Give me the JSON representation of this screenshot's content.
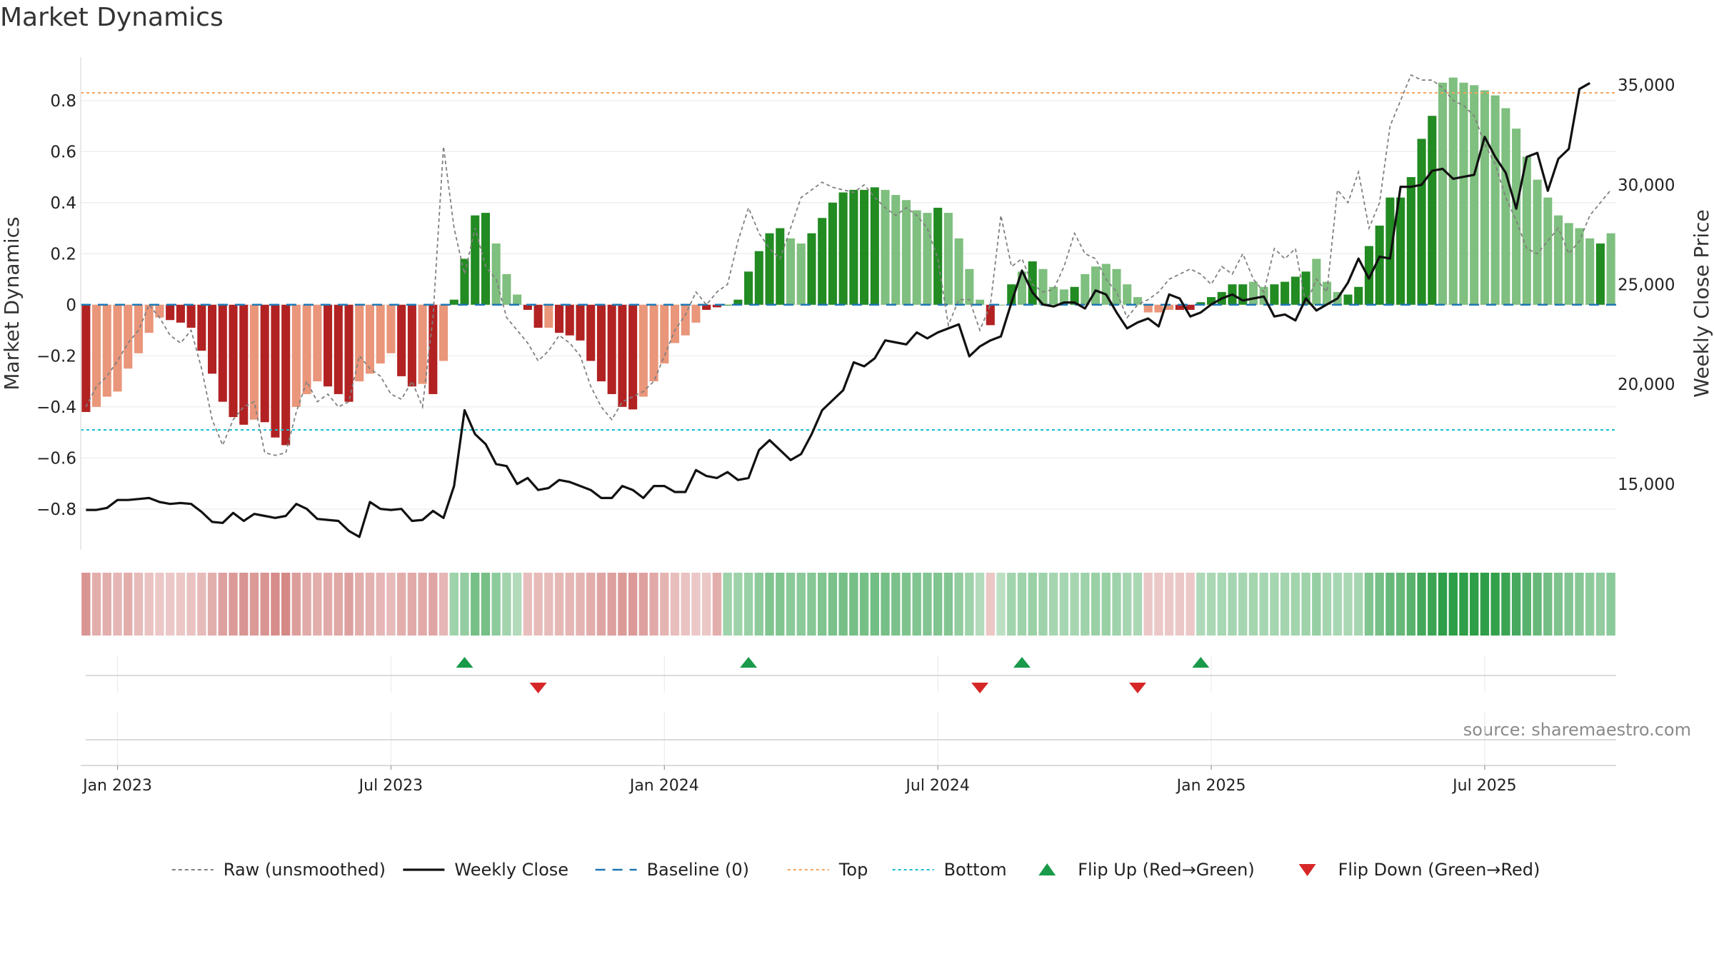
{
  "title": "Market Dynamics",
  "source": "source: sharemaestro.com",
  "colors": {
    "deep_red": "#b22222",
    "light_red": "#e9967a",
    "deep_green": "#228b22",
    "light_green": "#7fbf7f",
    "close_line": "#111111",
    "raw_line": "#808080",
    "baseline": "#1f77b4",
    "top_line": "#f4a460",
    "bottom_line": "#17becf",
    "flip_up": "#1a9a4a",
    "flip_down": "#d62728"
  },
  "legend": [
    {
      "key": "raw",
      "label": "Raw (unsmoothed)",
      "style": "dashed-gray-line"
    },
    {
      "key": "close",
      "label": "Weekly Close",
      "style": "solid-black-line"
    },
    {
      "key": "baseline",
      "label": "Baseline (0)",
      "style": "dashed-blue-line"
    },
    {
      "key": "top",
      "label": "Top",
      "style": "dotted-orange-line"
    },
    {
      "key": "bottom",
      "label": "Bottom",
      "style": "dotted-cyan-line"
    },
    {
      "key": "flip_up",
      "label": "Flip Up (Red→Green)",
      "style": "green-triangle-up"
    },
    {
      "key": "flip_down",
      "label": "Flip Down (Green→Red)",
      "style": "red-triangle-down"
    }
  ],
  "chart_data": {
    "type": "bar",
    "title": "Market Dynamics",
    "ylabel": "Market Dynamics",
    "y2label": "Weekly Close Price",
    "ylim": [
      -0.96,
      0.97
    ],
    "y2lim": [
      11700,
      36400
    ],
    "yticks": [
      "−0.8",
      "−0.6",
      "−0.4",
      "−0.2",
      "0",
      "0.2",
      "0.4",
      "0.6",
      "0.8"
    ],
    "yticks_values": [
      -0.8,
      -0.6,
      -0.4,
      -0.2,
      0,
      0.2,
      0.4,
      0.6,
      0.8
    ],
    "y2ticks": [
      "15,000",
      "20,000",
      "25,000",
      "30,000",
      "35,000"
    ],
    "y2ticks_values": [
      15000,
      20000,
      25000,
      30000,
      35000
    ],
    "xticks": [
      "Jan 2023",
      "Jul 2023",
      "Jan 2024",
      "Jul 2024",
      "Jan 2025",
      "Jul 2025"
    ],
    "xticks_week_index": [
      3,
      29,
      55,
      81,
      107,
      133
    ],
    "top": 0.83,
    "bottom": -0.49,
    "baseline": 0,
    "weeks": 146,
    "bars": [
      -0.42,
      -0.4,
      -0.36,
      -0.34,
      -0.25,
      -0.19,
      -0.11,
      -0.05,
      -0.06,
      -0.07,
      -0.09,
      -0.18,
      -0.27,
      -0.38,
      -0.44,
      -0.47,
      -0.45,
      -0.46,
      -0.52,
      -0.55,
      -0.4,
      -0.35,
      -0.3,
      -0.32,
      -0.35,
      -0.38,
      -0.3,
      -0.27,
      -0.23,
      -0.19,
      -0.28,
      -0.32,
      -0.31,
      -0.35,
      -0.22,
      0.02,
      0.18,
      0.35,
      0.36,
      0.24,
      0.12,
      0.04,
      -0.02,
      -0.09,
      -0.09,
      -0.11,
      -0.12,
      -0.14,
      -0.22,
      -0.3,
      -0.35,
      -0.4,
      -0.41,
      -0.36,
      -0.3,
      -0.23,
      -0.15,
      -0.12,
      -0.07,
      -0.02,
      -0.01,
      0.0,
      0.02,
      0.13,
      0.21,
      0.28,
      0.3,
      0.26,
      0.24,
      0.28,
      0.34,
      0.4,
      0.44,
      0.45,
      0.45,
      0.46,
      0.45,
      0.43,
      0.41,
      0.37,
      0.36,
      0.38,
      0.36,
      0.26,
      0.14,
      0.02,
      -0.08,
      0.0,
      0.08,
      0.13,
      0.17,
      0.14,
      0.07,
      0.06,
      0.07,
      0.12,
      0.15,
      0.16,
      0.14,
      0.08,
      0.03,
      -0.03,
      -0.03,
      -0.02,
      -0.02,
      -0.02,
      0.01,
      0.03,
      0.05,
      0.08,
      0.08,
      0.09,
      0.07,
      0.08,
      0.09,
      0.11,
      0.13,
      0.18,
      0.09,
      0.05,
      0.04,
      0.07,
      0.23,
      0.31,
      0.42,
      0.42,
      0.5,
      0.65,
      0.74,
      0.87,
      0.89,
      0.87,
      0.86,
      0.84,
      0.82,
      0.77,
      0.69,
      0.58,
      0.49,
      0.42,
      0.35,
      0.32,
      0.3,
      0.26,
      0.24,
      0.28
    ],
    "bar_shades": [
      "deep",
      "light",
      "light",
      "light",
      "light",
      "light",
      "light",
      "light",
      "deep",
      "deep",
      "deep",
      "deep",
      "deep",
      "deep",
      "deep",
      "deep",
      "light",
      "deep",
      "deep",
      "deep",
      "light",
      "light",
      "light",
      "deep",
      "deep",
      "deep",
      "light",
      "light",
      "light",
      "light",
      "deep",
      "deep",
      "light",
      "deep",
      "light",
      "deep",
      "deep",
      "deep",
      "deep",
      "light",
      "light",
      "light",
      "deep",
      "deep",
      "light",
      "deep",
      "deep",
      "deep",
      "deep",
      "deep",
      "deep",
      "deep",
      "deep",
      "light",
      "light",
      "light",
      "light",
      "light",
      "light",
      "deep",
      "deep",
      "deep",
      "deep",
      "deep",
      "deep",
      "deep",
      "deep",
      "light",
      "light",
      "deep",
      "deep",
      "deep",
      "deep",
      "deep",
      "deep",
      "deep",
      "light",
      "light",
      "light",
      "light",
      "light",
      "deep",
      "light",
      "light",
      "light",
      "light",
      "deep",
      "light",
      "deep",
      "light",
      "deep",
      "light",
      "light",
      "light",
      "deep",
      "light",
      "light",
      "light",
      "light",
      "light",
      "light",
      "light",
      "light",
      "light",
      "deep",
      "deep",
      "deep",
      "deep",
      "deep",
      "deep",
      "deep",
      "light",
      "light",
      "deep",
      "deep",
      "deep",
      "deep",
      "light",
      "light",
      "light",
      "deep",
      "deep",
      "deep",
      "deep",
      "deep",
      "deep",
      "deep",
      "deep",
      "deep",
      "light",
      "light",
      "light",
      "light",
      "light",
      "light",
      "light",
      "light",
      "light",
      "light",
      "light",
      "light",
      "light",
      "light",
      "light",
      "deep"
    ],
    "raw": [
      -0.4,
      -0.32,
      -0.28,
      -0.22,
      -0.15,
      -0.1,
      0.0,
      -0.05,
      -0.12,
      -0.15,
      -0.1,
      -0.25,
      -0.45,
      -0.55,
      -0.45,
      -0.4,
      -0.38,
      -0.58,
      -0.59,
      -0.58,
      -0.42,
      -0.3,
      -0.38,
      -0.35,
      -0.4,
      -0.38,
      -0.2,
      -0.25,
      -0.28,
      -0.35,
      -0.37,
      -0.3,
      -0.4,
      -0.05,
      0.62,
      0.3,
      0.12,
      0.3,
      0.15,
      0.1,
      -0.05,
      -0.1,
      -0.15,
      -0.22,
      -0.18,
      -0.12,
      -0.15,
      -0.2,
      -0.32,
      -0.4,
      -0.45,
      -0.38,
      -0.36,
      -0.34,
      -0.3,
      -0.2,
      -0.1,
      -0.04,
      0.05,
      0.0,
      0.05,
      0.08,
      0.25,
      0.38,
      0.28,
      0.22,
      0.18,
      0.3,
      0.42,
      0.45,
      0.48,
      0.46,
      0.45,
      0.44,
      0.47,
      0.42,
      0.38,
      0.35,
      0.38,
      0.35,
      0.3,
      0.18,
      -0.08,
      0.02,
      0.02,
      -0.1,
      0.0,
      0.35,
      0.15,
      0.18,
      0.08,
      0.05,
      0.06,
      0.15,
      0.28,
      0.2,
      0.18,
      0.1,
      0.05,
      -0.05,
      0.0,
      0.02,
      0.05,
      0.1,
      0.12,
      0.14,
      0.12,
      0.08,
      0.15,
      0.12,
      0.2,
      0.1,
      0.05,
      0.22,
      0.18,
      0.22,
      0.0,
      0.1,
      0.05,
      0.45,
      0.4,
      0.52,
      0.3,
      0.4,
      0.7,
      0.8,
      0.9,
      0.88,
      0.88,
      0.85,
      0.8,
      0.78,
      0.74,
      0.63,
      0.55,
      0.42,
      0.33,
      0.22,
      0.2,
      0.25,
      0.3,
      0.2,
      0.25,
      0.35,
      0.4,
      0.45
    ],
    "weekly_close": [
      13700,
      13700,
      13800,
      14200,
      14200,
      14250,
      14300,
      14100,
      14000,
      14050,
      14000,
      13600,
      13100,
      13050,
      13550,
      13150,
      13500,
      13400,
      13300,
      13400,
      14000,
      13750,
      13250,
      13200,
      13150,
      12650,
      12350,
      14100,
      13750,
      13700,
      13750,
      13150,
      13200,
      13650,
      13300,
      14900,
      18700,
      17500,
      17000,
      16000,
      15900,
      15000,
      15300,
      14700,
      14800,
      15200,
      15100,
      14900,
      14700,
      14300,
      14300,
      14900,
      14700,
      14300,
      14900,
      14900,
      14600,
      14600,
      15700,
      15400,
      15300,
      15600,
      15200,
      15300,
      16700,
      17200,
      16700,
      16200,
      16500,
      17500,
      18700,
      19200,
      19700,
      21100,
      20900,
      21300,
      22200,
      22100,
      22000,
      22600,
      22300,
      22600,
      22800,
      23000,
      21400,
      21900,
      22200,
      22400,
      24100,
      25700,
      24600,
      24000,
      23900,
      24100,
      24100,
      23800,
      24700,
      24500,
      23600,
      22800,
      23100,
      23300,
      22900,
      24500,
      24300,
      23400,
      23600,
      24000,
      24300,
      24500,
      24200,
      24300,
      24400,
      23400,
      23500,
      23200,
      24300,
      23700,
      24000,
      24300,
      25100,
      26300,
      25300,
      26400,
      26300,
      29900,
      29900,
      30000,
      30700,
      30800,
      30300,
      30400,
      30500,
      32400,
      31400,
      30600,
      28800,
      31400,
      31600,
      29700,
      31300,
      31800,
      34800,
      35100
    ],
    "flip_up_week_index": [
      36,
      63,
      89,
      106
    ],
    "flip_down_week_index": [
      43,
      85,
      100
    ],
    "regime_intensity": [
      0.45,
      0.3,
      0.3,
      0.25,
      0.3,
      0.22,
      0.18,
      0.15,
      0.14,
      0.15,
      0.18,
      0.22,
      0.3,
      0.38,
      0.42,
      0.45,
      0.42,
      0.45,
      0.5,
      0.52,
      0.4,
      0.32,
      0.3,
      0.32,
      0.34,
      0.38,
      0.3,
      0.28,
      0.25,
      0.22,
      0.3,
      0.32,
      0.32,
      0.35,
      0.25,
      0.3,
      0.35,
      0.5,
      0.5,
      0.38,
      0.28,
      0.2,
      0.2,
      0.22,
      0.22,
      0.24,
      0.25,
      0.26,
      0.3,
      0.35,
      0.38,
      0.42,
      0.42,
      0.38,
      0.32,
      0.26,
      0.2,
      0.18,
      0.14,
      0.15,
      0.3,
      0.3,
      0.3,
      0.32,
      0.38,
      0.45,
      0.45,
      0.4,
      0.4,
      0.42,
      0.45,
      0.48,
      0.5,
      0.5,
      0.5,
      0.52,
      0.5,
      0.48,
      0.46,
      0.45,
      0.44,
      0.45,
      0.44,
      0.36,
      0.3,
      0.2,
      0.15,
      0.15,
      0.28,
      0.3,
      0.32,
      0.3,
      0.26,
      0.26,
      0.26,
      0.3,
      0.32,
      0.32,
      0.3,
      0.26,
      0.24,
      0.14,
      0.14,
      0.14,
      0.14,
      0.14,
      0.22,
      0.24,
      0.25,
      0.26,
      0.26,
      0.27,
      0.26,
      0.26,
      0.27,
      0.28,
      0.3,
      0.34,
      0.27,
      0.25,
      0.24,
      0.26,
      0.45,
      0.5,
      0.58,
      0.58,
      0.65,
      0.75,
      0.8,
      0.9,
      0.92,
      0.9,
      0.88,
      0.86,
      0.84,
      0.8,
      0.74,
      0.65,
      0.58,
      0.52,
      0.46,
      0.44,
      0.42,
      0.38,
      0.36,
      0.4
    ],
    "legend_position": "bottom-center",
    "grid": true
  }
}
